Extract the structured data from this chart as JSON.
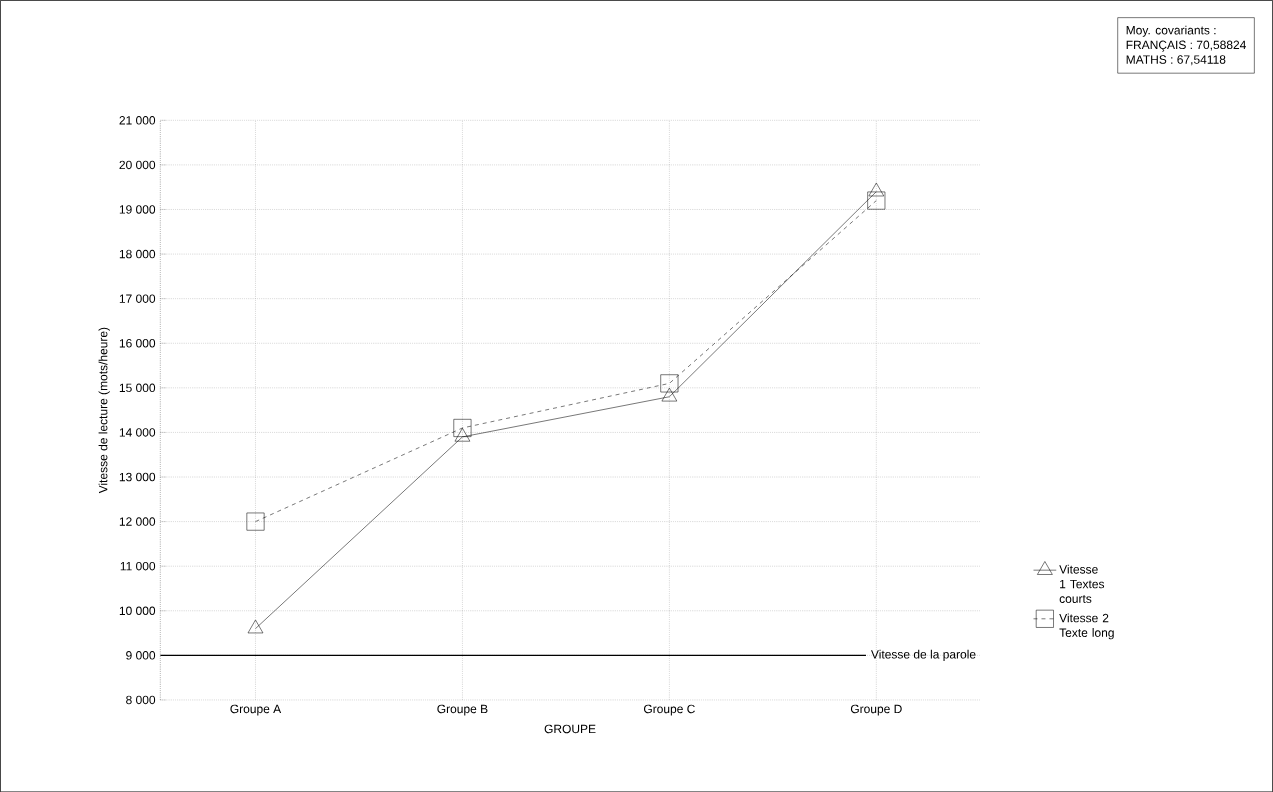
{
  "chart_data": {
    "type": "line",
    "xlabel": "GROUPE",
    "ylabel": "Vitesse de lecture (mots/heure)",
    "categories": [
      "Groupe A",
      "Groupe B",
      "Groupe C",
      "Groupe D"
    ],
    "series": [
      {
        "name": "Vitesse 1 Textes courts",
        "color": "#000000",
        "values": [
          9600,
          13900,
          14800,
          19400
        ],
        "marker": "triangle",
        "line_style": "solid"
      },
      {
        "name": "Vitesse 2 Texte long",
        "color": "#000000",
        "values": [
          12000,
          14100,
          15100,
          19200
        ],
        "marker": "square",
        "line_style": "dashed"
      }
    ],
    "ylim": [
      8000,
      21000
    ],
    "yticks": [
      {
        "value": 8000,
        "label": "8 000"
      },
      {
        "value": 9000,
        "label": "9 000"
      },
      {
        "value": 10000,
        "label": "10 000"
      },
      {
        "value": 11000,
        "label": "11 000"
      },
      {
        "value": 12000,
        "label": "12 000"
      },
      {
        "value": 13000,
        "label": "13 000"
      },
      {
        "value": 14000,
        "label": "14 000"
      },
      {
        "value": 15000,
        "label": "15 000"
      },
      {
        "value": 16000,
        "label": "16 000"
      },
      {
        "value": 17000,
        "label": "17 000"
      },
      {
        "value": 18000,
        "label": "18 000"
      },
      {
        "value": 19000,
        "label": "19 000"
      },
      {
        "value": 20000,
        "label": "20 000"
      },
      {
        "value": 21000,
        "label": "21 000"
      }
    ],
    "ref_lines": [
      {
        "axis": "y",
        "value": 9000,
        "label": "Vitesse de la parole",
        "color": "#000000"
      }
    ],
    "annotations": [
      "Moy. covariants :",
      "FRANÇAIS : 70,58824",
      "MATHS : 67,54118"
    ],
    "grid": true,
    "legend": "right"
  }
}
